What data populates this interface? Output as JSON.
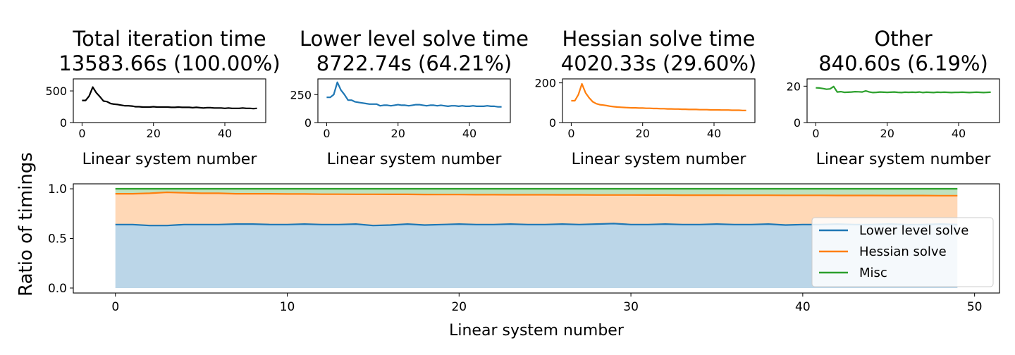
{
  "colors": {
    "total": "#000000",
    "lower": "#1f77b4",
    "hessian": "#ff7f0e",
    "misc": "#2ca02c"
  },
  "chart_data": [
    {
      "type": "line",
      "title": "Total iteration time",
      "subtitle": "13583.66s  (100.00%)",
      "xlabel": "Linear system number",
      "ylabel": "",
      "xlim": [
        -2.45,
        51.45
      ],
      "ylim": [
        0,
        690
      ],
      "xticks": [
        0,
        20,
        40
      ],
      "yticks": [
        0,
        500
      ],
      "series": [
        {
          "color": "#000000",
          "values": [
            350,
            350,
            420,
            560,
            470,
            410,
            340,
            330,
            300,
            290,
            285,
            275,
            265,
            265,
            260,
            250,
            250,
            245,
            245,
            245,
            250,
            245,
            245,
            245,
            245,
            240,
            240,
            245,
            240,
            240,
            240,
            235,
            240,
            235,
            230,
            235,
            235,
            230,
            230,
            230,
            225,
            230,
            225,
            225,
            225,
            230,
            225,
            225,
            220,
            225
          ]
        }
      ]
    },
    {
      "type": "line",
      "title": "Lower level solve time",
      "subtitle": "8722.74s  (64.21%)",
      "xlabel": "Linear system number",
      "ylabel": "",
      "xlim": [
        -2.45,
        51.45
      ],
      "ylim": [
        0,
        390
      ],
      "xticks": [
        0,
        20,
        40
      ],
      "yticks": [
        0,
        250
      ],
      "series": [
        {
          "color": "#1f77b4",
          "values": [
            225,
            225,
            250,
            360,
            290,
            250,
            200,
            200,
            185,
            180,
            175,
            170,
            165,
            165,
            165,
            150,
            155,
            155,
            150,
            155,
            160,
            155,
            155,
            150,
            155,
            160,
            160,
            155,
            150,
            155,
            155,
            150,
            155,
            150,
            145,
            150,
            150,
            145,
            150,
            145,
            145,
            150,
            145,
            145,
            145,
            150,
            145,
            145,
            140,
            140
          ]
        }
      ]
    },
    {
      "type": "line",
      "title": "Hessian solve time",
      "subtitle": "4020.33s  (29.60%)",
      "xlabel": "Linear system number",
      "ylabel": "",
      "xlim": [
        -2.45,
        51.45
      ],
      "ylim": [
        0,
        220
      ],
      "xticks": [
        0,
        20,
        40
      ],
      "yticks": [
        0,
        200
      ],
      "series": [
        {
          "color": "#ff7f0e",
          "values": [
            110,
            110,
            140,
            195,
            150,
            125,
            105,
            95,
            90,
            88,
            85,
            82,
            80,
            78,
            77,
            76,
            75,
            74,
            74,
            73,
            73,
            72,
            72,
            71,
            71,
            70,
            70,
            69,
            69,
            68,
            68,
            67,
            67,
            66,
            66,
            66,
            65,
            65,
            65,
            64,
            64,
            64,
            63,
            63,
            63,
            62,
            62,
            62,
            61,
            61
          ]
        }
      ]
    },
    {
      "type": "line",
      "title": "Other",
      "subtitle": "840.60s  (6.19%)",
      "xlabel": "Linear system number",
      "ylabel": "",
      "xlim": [
        -2.45,
        51.45
      ],
      "ylim": [
        0,
        24
      ],
      "xticks": [
        0,
        20,
        40
      ],
      "yticks": [
        0,
        20
      ],
      "series": [
        {
          "color": "#2ca02c",
          "values": [
            19.1,
            19.0,
            18.7,
            18.3,
            18.5,
            19.8,
            16.8,
            17.0,
            16.6,
            16.7,
            16.8,
            17.0,
            16.9,
            16.8,
            17.4,
            16.8,
            16.5,
            16.6,
            16.8,
            16.7,
            16.6,
            16.7,
            16.8,
            16.6,
            16.5,
            16.7,
            16.6,
            16.7,
            16.6,
            16.8,
            16.5,
            16.7,
            16.6,
            16.5,
            16.7,
            16.6,
            16.7,
            16.6,
            16.5,
            16.6,
            16.6,
            16.7,
            16.6,
            16.5,
            16.6,
            16.7,
            16.6,
            16.5,
            16.6,
            16.7
          ]
        }
      ]
    },
    {
      "type": "area",
      "title": "",
      "xlabel": "Linear system number",
      "ylabel": "Ratio of timings",
      "xlim": [
        -2.45,
        51.45
      ],
      "ylim": [
        -0.05,
        1.05
      ],
      "xticks": [
        0,
        10,
        20,
        30,
        40,
        50
      ],
      "yticks": [
        0.0,
        0.5,
        1.0
      ],
      "yticklabels": [
        "0.0",
        "0.5",
        "1.0"
      ],
      "grid": false,
      "legend_position": "bottom-right",
      "series": [
        {
          "name": "Lower level solve",
          "color": "#1f77b4",
          "values": [
            0.64,
            0.64,
            0.63,
            0.63,
            0.64,
            0.64,
            0.64,
            0.645,
            0.645,
            0.64,
            0.64,
            0.645,
            0.64,
            0.64,
            0.645,
            0.63,
            0.635,
            0.645,
            0.635,
            0.64,
            0.645,
            0.64,
            0.64,
            0.645,
            0.64,
            0.64,
            0.645,
            0.64,
            0.645,
            0.65,
            0.64,
            0.64,
            0.645,
            0.64,
            0.64,
            0.645,
            0.64,
            0.64,
            0.645,
            0.635,
            0.64,
            0.64,
            0.645,
            0.64,
            0.64,
            0.645,
            0.64,
            0.64,
            0.645,
            0.64
          ]
        },
        {
          "name": "Hessian solve",
          "color": "#ff7f0e",
          "values": [
            0.95,
            0.95,
            0.955,
            0.965,
            0.96,
            0.955,
            0.955,
            0.95,
            0.95,
            0.95,
            0.948,
            0.948,
            0.946,
            0.946,
            0.945,
            0.945,
            0.944,
            0.944,
            0.943,
            0.942,
            0.942,
            0.941,
            0.941,
            0.94,
            0.94,
            0.94,
            0.939,
            0.939,
            0.938,
            0.938,
            0.938,
            0.937,
            0.937,
            0.936,
            0.936,
            0.936,
            0.935,
            0.935,
            0.935,
            0.934,
            0.934,
            0.934,
            0.933,
            0.933,
            0.933,
            0.932,
            0.932,
            0.932,
            0.931,
            0.931
          ]
        },
        {
          "name": "Misc",
          "color": "#2ca02c",
          "values": [
            1.0,
            1.0,
            1.0,
            1.0,
            1.0,
            1.0,
            1.0,
            1.0,
            1.0,
            1.0,
            1.0,
            1.0,
            1.0,
            1.0,
            1.0,
            1.0,
            1.0,
            1.0,
            1.0,
            1.0,
            1.0,
            1.0,
            1.0,
            1.0,
            1.0,
            1.0,
            1.0,
            1.0,
            1.0,
            1.0,
            1.0,
            1.0,
            1.0,
            1.0,
            1.0,
            1.0,
            1.0,
            1.0,
            1.0,
            1.0,
            1.0,
            1.0,
            1.0,
            1.0,
            1.0,
            1.0,
            1.0,
            1.0,
            1.0,
            1.0
          ]
        }
      ]
    }
  ]
}
